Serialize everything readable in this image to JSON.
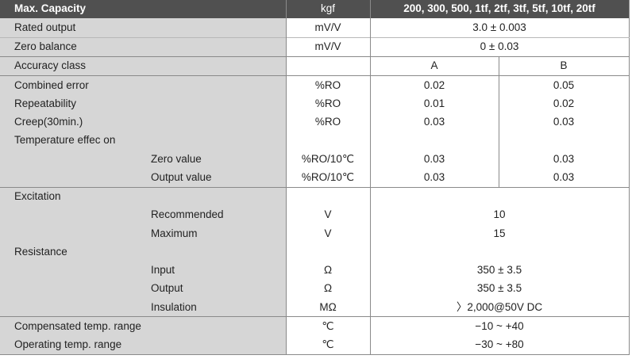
{
  "header": {
    "label": "Max. Capacity",
    "unit": "kgf",
    "value": "200, 300, 500, 1tf, 2tf, 3tf, 5tf, 10tf, 20tf"
  },
  "rows": {
    "rated_output": {
      "label": "Rated output",
      "unit": "mV/V",
      "value": "3.0 ± 0.003"
    },
    "zero_balance": {
      "label": "Zero balance",
      "unit": "mV/V",
      "value": "0 ± 0.03"
    },
    "accuracy_class": {
      "label": "Accuracy class",
      "a": "A",
      "b": "B"
    },
    "combined_error": {
      "label": "Combined error",
      "unit": "%RO",
      "a": "0.02",
      "b": "0.05"
    },
    "repeatability": {
      "label": "Repeatability",
      "unit": "%RO",
      "a": "0.01",
      "b": "0.02"
    },
    "creep": {
      "label": "Creep(30min.)",
      "unit": "%RO",
      "a": "0.03",
      "b": "0.03"
    },
    "temp_effect": {
      "label": "Temperature effec on"
    },
    "zero_value": {
      "label": "Zero value",
      "unit": "%RO/10℃",
      "a": "0.03",
      "b": "0.03"
    },
    "output_value": {
      "label": "Output value",
      "unit": "%RO/10℃",
      "a": "0.03",
      "b": "0.03"
    },
    "excitation": {
      "label": "Excitation"
    },
    "recommended": {
      "label": "Recommended",
      "unit": "V",
      "value": "10"
    },
    "maximum": {
      "label": "Maximum",
      "unit": "V",
      "value": "15"
    },
    "resistance": {
      "label": "Resistance"
    },
    "input": {
      "label": "Input",
      "unit": "Ω",
      "value": "350 ± 3.5"
    },
    "output": {
      "label": "Output",
      "unit": "Ω",
      "value": "350 ± 3.5"
    },
    "insulation": {
      "label": "Insulation",
      "unit": "MΩ",
      "value": "〉2,000@50V DC"
    },
    "compensated_temp": {
      "label": "Compensated temp. range",
      "unit": "℃",
      "value": "−10 ~ +40"
    },
    "operating_temp": {
      "label": "Operating temp. range",
      "unit": "℃",
      "value": "−30 ~ +80"
    }
  }
}
